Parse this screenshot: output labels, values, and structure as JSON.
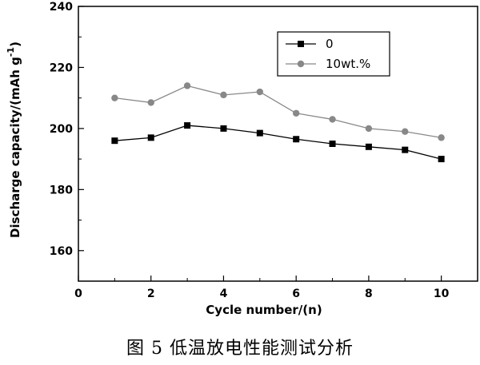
{
  "chart_data": {
    "type": "line",
    "title": "",
    "xlabel": "Cycle number/(n)",
    "ylabel": "Discharge capacity/(mAh g",
    "ylabel_sup": "-1",
    "ylabel_suffix": ")",
    "xlim": [
      0,
      11
    ],
    "ylim": [
      150,
      240
    ],
    "xticks": [
      0,
      2,
      4,
      6,
      8,
      10
    ],
    "yticks": [
      160,
      180,
      200,
      220,
      240
    ],
    "grid": false,
    "legend_position": "top-right",
    "x": [
      1,
      2,
      3,
      4,
      5,
      6,
      7,
      8,
      9,
      10
    ],
    "series": [
      {
        "name": "0",
        "color": "#000000",
        "marker": "square",
        "values": [
          196,
          197,
          201,
          200,
          198.5,
          196.5,
          195,
          194,
          193,
          190
        ]
      },
      {
        "name": "10wt.%",
        "color": "#888888",
        "marker": "circle",
        "values": [
          210,
          208.5,
          214,
          211,
          212,
          205,
          203,
          200,
          199,
          197
        ]
      }
    ]
  },
  "caption": "图 5    低温放电性能测试分析"
}
